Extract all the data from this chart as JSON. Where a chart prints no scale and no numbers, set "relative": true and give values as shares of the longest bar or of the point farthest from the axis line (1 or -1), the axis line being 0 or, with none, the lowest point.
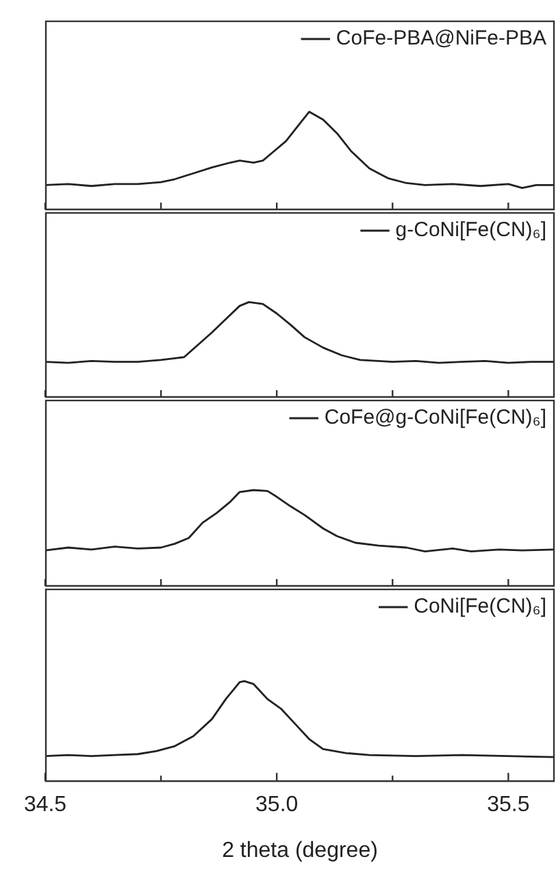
{
  "chart_data": [
    {
      "type": "line",
      "relative": true,
      "legend": "top right",
      "tick_labels": false,
      "xlim": [
        34.5,
        35.6
      ],
      "xticks": [
        {
          "value": 34.5,
          "label": null
        },
        {
          "value": 34.75,
          "label": null
        },
        {
          "value": 35,
          "label": null
        },
        {
          "value": 35.25,
          "label": null
        },
        {
          "value": 35.5,
          "label": null
        }
      ],
      "series": [
        {
          "name": "CoFe-PBA@NiFe-PBA",
          "color": "#222222",
          "x": [
            34.5,
            34.55,
            34.6,
            34.65,
            34.7,
            34.75,
            34.78,
            34.82,
            34.86,
            34.9,
            34.92,
            34.95,
            34.97,
            34.99,
            35.02,
            35.05,
            35.07,
            35.1,
            35.13,
            35.16,
            35.2,
            35.24,
            35.28,
            35.32,
            35.38,
            35.44,
            35.5,
            35.53,
            35.56,
            35.6
          ],
          "values": [
            0.25,
            0.26,
            0.24,
            0.26,
            0.26,
            0.28,
            0.31,
            0.37,
            0.43,
            0.48,
            0.5,
            0.48,
            0.5,
            0.58,
            0.7,
            0.88,
            1,
            0.92,
            0.78,
            0.6,
            0.42,
            0.32,
            0.27,
            0.25,
            0.26,
            0.24,
            0.26,
            0.22,
            0.25,
            0.25
          ]
        }
      ]
    },
    {
      "type": "line",
      "relative": true,
      "legend": "top right",
      "tick_labels": false,
      "xlim": [
        34.5,
        35.6
      ],
      "xticks": [
        {
          "value": 34.5,
          "label": null
        },
        {
          "value": 34.75,
          "label": null
        },
        {
          "value": 35,
          "label": null
        },
        {
          "value": 35.25,
          "label": null
        },
        {
          "value": 35.5,
          "label": null
        }
      ],
      "series": [
        {
          "name": "g-CoNi[Fe(CN)₆]",
          "color": "#222222",
          "x": [
            34.5,
            34.55,
            34.6,
            34.65,
            34.7,
            34.75,
            34.8,
            34.83,
            34.86,
            34.89,
            34.92,
            34.94,
            34.97,
            35.0,
            35.03,
            35.06,
            35.1,
            35.14,
            35.18,
            35.25,
            35.3,
            35.35,
            35.4,
            35.45,
            35.5,
            35.55,
            35.6
          ],
          "values": [
            0.37,
            0.36,
            0.38,
            0.37,
            0.37,
            0.39,
            0.42,
            0.55,
            0.68,
            0.82,
            0.96,
            1,
            0.98,
            0.88,
            0.76,
            0.63,
            0.52,
            0.44,
            0.39,
            0.37,
            0.38,
            0.36,
            0.37,
            0.38,
            0.36,
            0.37,
            0.37
          ]
        }
      ]
    },
    {
      "type": "line",
      "relative": true,
      "legend": "top right",
      "tick_labels": false,
      "xlim": [
        34.5,
        35.6
      ],
      "xticks": [
        {
          "value": 34.5,
          "label": null
        },
        {
          "value": 34.75,
          "label": null
        },
        {
          "value": 35,
          "label": null
        },
        {
          "value": 35.25,
          "label": null
        },
        {
          "value": 35.5,
          "label": null
        }
      ],
      "series": [
        {
          "name": "CoFe@g-CoNi[Fe(CN)₆]",
          "color": "#222222",
          "x": [
            34.5,
            34.55,
            34.6,
            34.65,
            34.7,
            34.75,
            34.78,
            34.81,
            34.84,
            34.87,
            34.9,
            34.92,
            34.95,
            34.98,
            35.0,
            35.03,
            35.06,
            35.1,
            35.13,
            35.17,
            35.22,
            35.28,
            35.32,
            35.38,
            35.42,
            35.48,
            35.53,
            35.6
          ],
          "values": [
            0.37,
            0.4,
            0.38,
            0.41,
            0.39,
            0.4,
            0.44,
            0.5,
            0.66,
            0.76,
            0.88,
            0.98,
            1,
            0.99,
            0.93,
            0.83,
            0.74,
            0.6,
            0.52,
            0.45,
            0.42,
            0.4,
            0.36,
            0.39,
            0.36,
            0.38,
            0.37,
            0.38
          ]
        }
      ]
    },
    {
      "type": "line",
      "relative": true,
      "legend": "top right",
      "tick_labels": "x",
      "xlabel": "2 theta (degree)",
      "xlim": [
        34.5,
        35.6
      ],
      "xticks": [
        34.5,
        {
          "value": 34.75,
          "label": null
        },
        {
          "value": 35,
          "label": "35.0"
        },
        {
          "value": 35.25,
          "label": null
        },
        35.5
      ],
      "series": [
        {
          "name": "CoNi[Fe(CN)₆]",
          "color": "#222222",
          "x": [
            34.5,
            34.55,
            34.6,
            34.65,
            34.7,
            34.74,
            34.78,
            34.82,
            34.86,
            34.89,
            34.92,
            34.93,
            34.95,
            34.98,
            35.01,
            35.04,
            35.07,
            35.1,
            35.15,
            35.2,
            35.3,
            35.4,
            35.5,
            35.6
          ],
          "values": [
            0.25,
            0.26,
            0.25,
            0.26,
            0.27,
            0.3,
            0.35,
            0.45,
            0.62,
            0.82,
            0.99,
            1,
            0.97,
            0.82,
            0.72,
            0.57,
            0.42,
            0.32,
            0.28,
            0.26,
            0.25,
            0.26,
            0.25,
            0.24
          ]
        }
      ]
    }
  ]
}
